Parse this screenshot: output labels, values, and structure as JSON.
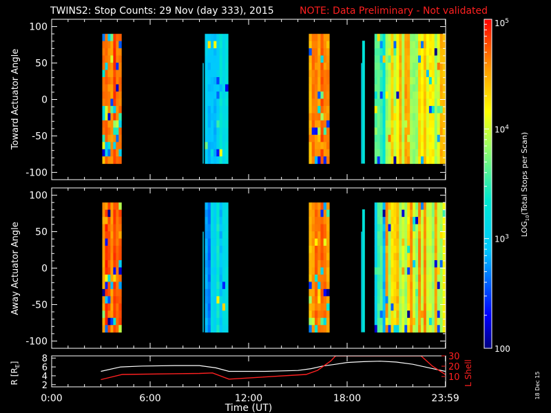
{
  "header": {
    "title": "TWINS2: Stop Counts: 29 Nov (day 333), 2015",
    "note": "NOTE: Data Preliminary - Not validated",
    "stamp": "18 Dec 15"
  },
  "colors": {
    "background": "#000000",
    "axis": "#ffffff",
    "note": "#ff2020",
    "lshell": "#ff2020",
    "radius": "#ffffff"
  },
  "colorbar": {
    "label": "LOG10(Total Stops per Scan)",
    "label_main": "LOG",
    "label_sub": "10",
    "label_rest": "(Total Stops per Scan)",
    "ticks": [
      {
        "value": 100,
        "base": "100",
        "exp": ""
      },
      {
        "value": 1000,
        "base": "10",
        "exp": "3"
      },
      {
        "value": 10000,
        "base": "10",
        "exp": "4"
      },
      {
        "value": 100000,
        "base": "10",
        "exp": "5"
      }
    ],
    "range": [
      100,
      100000
    ],
    "scale": "log",
    "colormap": "rainbow (dark blue to red)"
  },
  "chart_data": [
    {
      "type": "heatmap",
      "ylabel": "Toward Actuator Angle",
      "yticks": [
        "100",
        "50",
        "0",
        "-50",
        "-100"
      ],
      "ylim": [
        -110,
        110
      ],
      "xlim_hours": [
        0,
        24
      ],
      "scale": "log",
      "data_extent_deg": [
        -88,
        90
      ],
      "intervals": [
        {
          "start": "3:05",
          "end": "4:15",
          "level": "high (~10^4.7)"
        },
        {
          "start": "9:20",
          "end": "10:45",
          "level": "low-mid (~10^3.2)"
        },
        {
          "start": "15:40",
          "end": "16:55",
          "level": "high (~10^4.5)"
        },
        {
          "start": "18:55",
          "end": "19:05",
          "level": "trace"
        },
        {
          "start": "19:40",
          "end": "23:59",
          "level": "mid-high (~10^4.1)"
        }
      ]
    },
    {
      "type": "heatmap",
      "ylabel": "Away Actuator Angle",
      "yticks": [
        "100",
        "50",
        "0",
        "-50",
        "-100"
      ],
      "ylim": [
        -110,
        110
      ],
      "xlim_hours": [
        0,
        24
      ],
      "scale": "log",
      "data_extent_deg": [
        -88,
        90
      ],
      "intervals": [
        {
          "start": "3:05",
          "end": "4:15",
          "level": "high (~10^4.7)"
        },
        {
          "start": "9:20",
          "end": "10:45",
          "level": "low-mid (~10^3.2)"
        },
        {
          "start": "15:40",
          "end": "16:55",
          "level": "high (~10^4.5)"
        },
        {
          "start": "18:55",
          "end": "19:05",
          "level": "trace"
        },
        {
          "start": "19:40",
          "end": "23:59",
          "level": "mid-high (~10^4.1)"
        }
      ]
    },
    {
      "type": "line",
      "ylabel_left": "R [RE]",
      "ylabel_left_main": "R [R",
      "ylabel_left_sub": "E",
      "ylabel_left_end": "]",
      "ylabel_right": "L Shell",
      "yticks_left": [
        "2",
        "4",
        "6",
        "8"
      ],
      "ylim_left": [
        1.5,
        8.5
      ],
      "yticks_right": [
        "10",
        "20",
        "30"
      ],
      "ylim_right": [
        0,
        30
      ],
      "xticks": [
        "0:00",
        "6:00",
        "12:00",
        "18:00",
        "23:59"
      ],
      "xlabel": "Time (UT)",
      "series": [
        {
          "name": "R [RE]",
          "axis": "left",
          "x_hours": [
            3.0,
            4.2,
            5.5,
            7.5,
            9.0,
            10.0,
            10.8,
            13.0,
            15.0,
            15.8,
            16.5,
            17.3,
            18.0,
            19.0,
            20.0,
            21.0,
            22.0,
            23.0,
            23.98
          ],
          "y": [
            5.0,
            6.0,
            6.2,
            6.3,
            6.3,
            5.8,
            5.0,
            5.0,
            5.2,
            5.6,
            6.2,
            6.6,
            7.0,
            7.2,
            7.3,
            7.1,
            6.6,
            5.8,
            5.0
          ]
        },
        {
          "name": "L Shell",
          "axis": "right",
          "x_hours": [
            3.0,
            4.3,
            9.0,
            9.8,
            10.8,
            15.5,
            16.2,
            17.0,
            17.3,
            18.0,
            20.5,
            21.5,
            22.5,
            23.2,
            23.98
          ],
          "y": [
            7,
            12,
            13,
            13.5,
            7.5,
            12,
            16,
            25,
            30,
            30,
            30,
            30,
            30,
            20,
            12
          ]
        }
      ]
    }
  ]
}
